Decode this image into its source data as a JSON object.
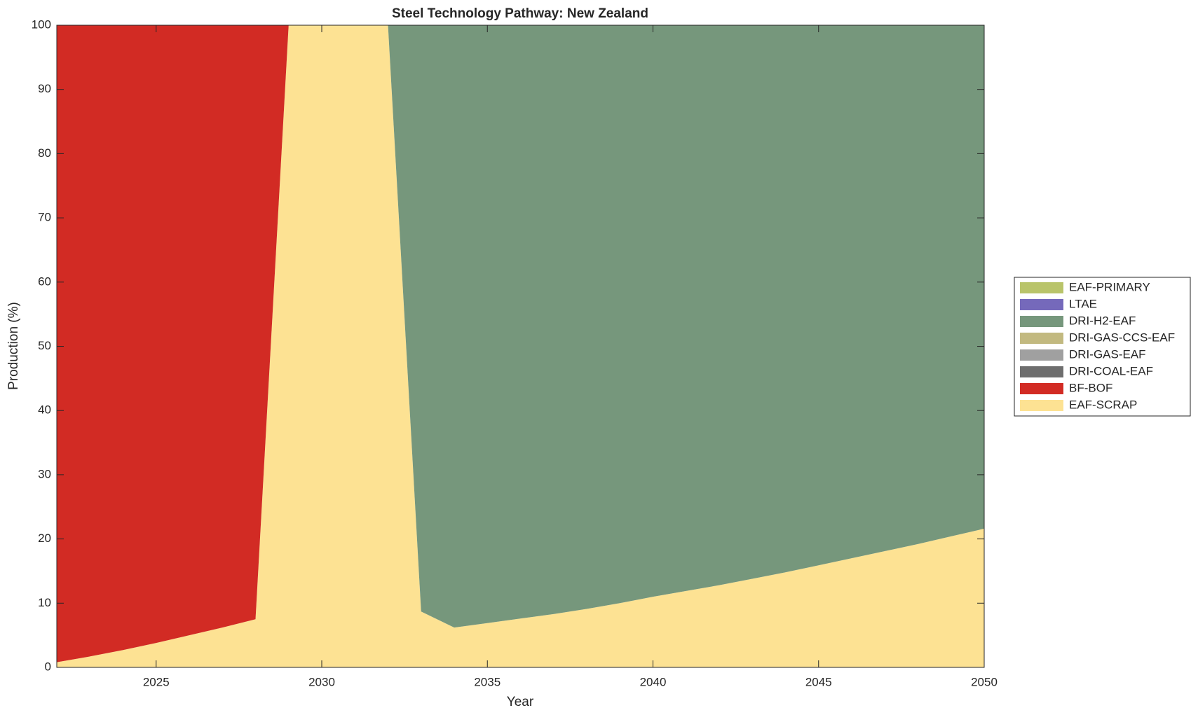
{
  "chart_data": {
    "type": "area",
    "stacked": true,
    "title": "Steel Technology Pathway: New Zealand",
    "xlabel": "Year",
    "ylabel": "Production (%)",
    "x": [
      2022,
      2023,
      2024,
      2025,
      2026,
      2027,
      2028,
      2029,
      2030,
      2031,
      2032,
      2033,
      2034,
      2035,
      2036,
      2037,
      2038,
      2039,
      2040,
      2041,
      2042,
      2043,
      2044,
      2045,
      2046,
      2047,
      2048,
      2049,
      2050
    ],
    "series": [
      {
        "name": "EAF-SCRAP",
        "color": "#fde293",
        "values": [
          0.8,
          1.7,
          2.7,
          3.8,
          5.0,
          6.2,
          7.5,
          100,
          100,
          100,
          100,
          8.7,
          6.2,
          6.9,
          7.6,
          8.3,
          9.1,
          10.0,
          11.0,
          11.9,
          12.8,
          13.8,
          14.8,
          15.9,
          17.0,
          18.1,
          19.2,
          20.4,
          21.6
        ]
      },
      {
        "name": "BF-BOF",
        "color": "#d22b24",
        "values": [
          99.2,
          98.3,
          97.3,
          96.2,
          95.0,
          93.8,
          92.5,
          0,
          0,
          0,
          0,
          0,
          0,
          0,
          0,
          0,
          0,
          0,
          0,
          0,
          0,
          0,
          0,
          0,
          0,
          0,
          0,
          0,
          0
        ]
      },
      {
        "name": "DRI-COAL-EAF",
        "color": "#6e6e6e",
        "values": [
          0,
          0,
          0,
          0,
          0,
          0,
          0,
          0,
          0,
          0,
          0,
          0,
          0,
          0,
          0,
          0,
          0,
          0,
          0,
          0,
          0,
          0,
          0,
          0,
          0,
          0,
          0,
          0,
          0
        ]
      },
      {
        "name": "DRI-GAS-EAF",
        "color": "#a0a0a0",
        "values": [
          0,
          0,
          0,
          0,
          0,
          0,
          0,
          0,
          0,
          0,
          0,
          0,
          0,
          0,
          0,
          0,
          0,
          0,
          0,
          0,
          0,
          0,
          0,
          0,
          0,
          0,
          0,
          0,
          0
        ]
      },
      {
        "name": "DRI-GAS-CCS-EAF",
        "color": "#c2b980",
        "values": [
          0,
          0,
          0,
          0,
          0,
          0,
          0,
          0,
          0,
          0,
          0,
          0,
          0,
          0,
          0,
          0,
          0,
          0,
          0,
          0,
          0,
          0,
          0,
          0,
          0,
          0,
          0,
          0,
          0
        ]
      },
      {
        "name": "DRI-H2-EAF",
        "color": "#76977c",
        "values": [
          0,
          0,
          0,
          0,
          0,
          0,
          0,
          0,
          0,
          0,
          0,
          91.3,
          93.8,
          93.1,
          92.4,
          91.7,
          90.9,
          90.0,
          89.0,
          88.1,
          87.2,
          86.2,
          85.2,
          84.1,
          83.0,
          81.9,
          80.8,
          79.6,
          78.4
        ]
      },
      {
        "name": "LTAE",
        "color": "#7569bb",
        "values": [
          0,
          0,
          0,
          0,
          0,
          0,
          0,
          0,
          0,
          0,
          0,
          0,
          0,
          0,
          0,
          0,
          0,
          0,
          0,
          0,
          0,
          0,
          0,
          0,
          0,
          0,
          0,
          0,
          0
        ]
      },
      {
        "name": "EAF-PRIMARY",
        "color": "#b9c46a",
        "values": [
          0,
          0,
          0,
          0,
          0,
          0,
          0,
          0,
          0,
          0,
          0,
          0,
          0,
          0,
          0,
          0,
          0,
          0,
          0,
          0,
          0,
          0,
          0,
          0,
          0,
          0,
          0,
          0,
          0
        ]
      }
    ],
    "xlim": [
      2022,
      2050
    ],
    "xticks": [
      2025,
      2030,
      2035,
      2040,
      2045,
      2050
    ],
    "ylim": [
      0,
      100
    ],
    "yticks": [
      0,
      10,
      20,
      30,
      40,
      50,
      60,
      70,
      80,
      90,
      100
    ],
    "legend": "outside-right",
    "legend_order": "reversed"
  }
}
